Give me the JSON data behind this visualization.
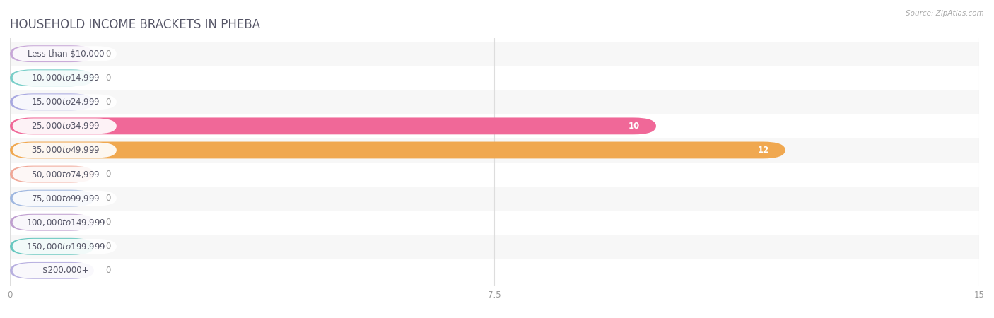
{
  "title": "HOUSEHOLD INCOME BRACKETS IN PHEBA",
  "source": "Source: ZipAtlas.com",
  "categories": [
    "Less than $10,000",
    "$10,000 to $14,999",
    "$15,000 to $24,999",
    "$25,000 to $34,999",
    "$35,000 to $49,999",
    "$50,000 to $74,999",
    "$75,000 to $99,999",
    "$100,000 to $149,999",
    "$150,000 to $199,999",
    "$200,000+"
  ],
  "values": [
    0,
    0,
    0,
    10,
    12,
    0,
    0,
    0,
    0,
    0
  ],
  "bar_colors": [
    "#c8a8d8",
    "#78cec8",
    "#a8a8e0",
    "#f06898",
    "#f0a850",
    "#f0a898",
    "#a0b8e0",
    "#c0a0d0",
    "#68c8c0",
    "#b8b0e0"
  ],
  "xlim": [
    0,
    15
  ],
  "xticks": [
    0,
    7.5,
    15
  ],
  "background_color": "#ffffff",
  "row_bg_even": "#f7f7f7",
  "row_bg_odd": "#ffffff",
  "title_fontsize": 12,
  "label_fontsize": 8.5,
  "value_fontsize": 8.5,
  "title_color": "#555566",
  "source_color": "#aaaaaa"
}
